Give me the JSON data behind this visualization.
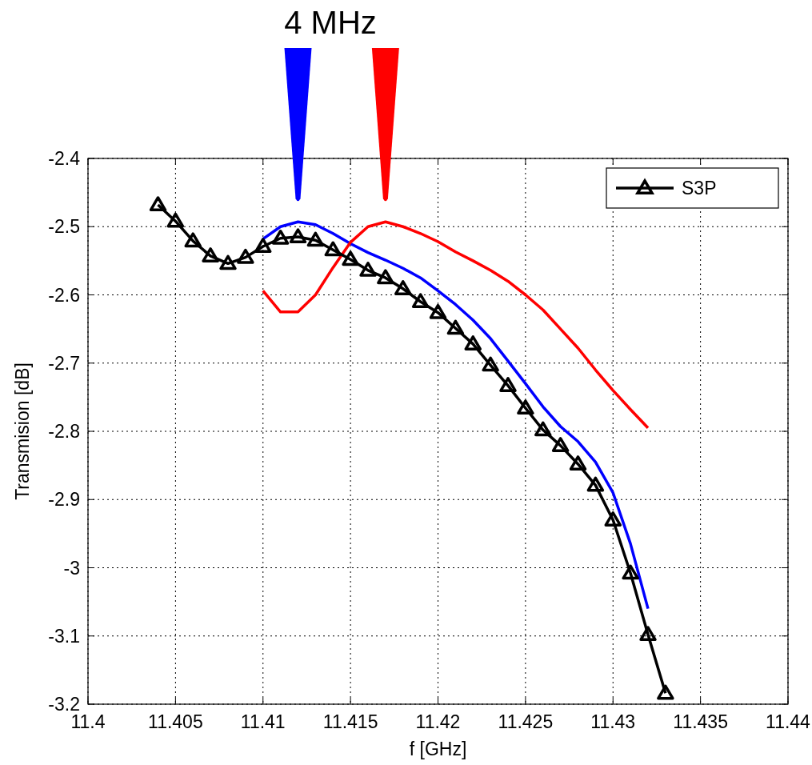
{
  "chart_data": {
    "type": "line",
    "xlabel": "f [GHz]",
    "ylabel": "Transmision [dB]",
    "annotations": [
      "4 MHz"
    ],
    "xlim": [
      11.4,
      11.44
    ],
    "xticks": [
      11.4,
      11.405,
      11.41,
      11.415,
      11.42,
      11.425,
      11.43,
      11.435,
      11.44
    ],
    "ylim": [
      -3.2,
      -2.4
    ],
    "yticks": [
      -3.2,
      -3.1,
      -3,
      -2.9,
      -2.8,
      -2.7,
      -2.6,
      -2.5,
      -2.4
    ],
    "grid": true,
    "legend": "top right",
    "line_style": "solid",
    "series": [
      {
        "color": "#0000ff",
        "marker": "none",
        "x": [
          11.41,
          11.411,
          11.412,
          11.413,
          11.414,
          11.415,
          11.416,
          11.417,
          11.418,
          11.419,
          11.42,
          11.421,
          11.422,
          11.423,
          11.424,
          11.425,
          11.426,
          11.427,
          11.428,
          11.429,
          11.43,
          11.431,
          11.432
        ],
        "values": [
          -2.518,
          -2.5,
          -2.493,
          -2.497,
          -2.51,
          -2.525,
          -2.538,
          -2.549,
          -2.561,
          -2.575,
          -2.594,
          -2.614,
          -2.637,
          -2.664,
          -2.697,
          -2.73,
          -2.764,
          -2.793,
          -2.815,
          -2.845,
          -2.89,
          -2.965,
          -3.06
        ]
      },
      {
        "color": "#ff0000",
        "marker": "none",
        "x": [
          11.41,
          11.411,
          11.412,
          11.413,
          11.414,
          11.415,
          11.416,
          11.417,
          11.418,
          11.419,
          11.42,
          11.421,
          11.422,
          11.423,
          11.424,
          11.425,
          11.426,
          11.427,
          11.428,
          11.429,
          11.43,
          11.431,
          11.432
        ],
        "values": [
          -2.594,
          -2.625,
          -2.625,
          -2.6,
          -2.56,
          -2.523,
          -2.5,
          -2.493,
          -2.5,
          -2.51,
          -2.522,
          -2.537,
          -2.55,
          -2.564,
          -2.58,
          -2.6,
          -2.622,
          -2.65,
          -2.678,
          -2.71,
          -2.74,
          -2.768,
          -2.795
        ]
      },
      {
        "name": "S3P",
        "color": "#000000",
        "marker": "triangle",
        "x": [
          11.404,
          11.405,
          11.406,
          11.407,
          11.408,
          11.409,
          11.41,
          11.411,
          11.412,
          11.413,
          11.414,
          11.415,
          11.416,
          11.417,
          11.418,
          11.419,
          11.42,
          11.421,
          11.422,
          11.423,
          11.424,
          11.425,
          11.426,
          11.427,
          11.428,
          11.429,
          11.43,
          11.431,
          11.432,
          11.433
        ],
        "values": [
          -2.468,
          -2.492,
          -2.521,
          -2.543,
          -2.554,
          -2.545,
          -2.529,
          -2.517,
          -2.515,
          -2.52,
          -2.534,
          -2.548,
          -2.564,
          -2.575,
          -2.591,
          -2.61,
          -2.626,
          -2.649,
          -2.672,
          -2.703,
          -2.733,
          -2.766,
          -2.798,
          -2.821,
          -2.848,
          -2.879,
          -2.93,
          -3.008,
          -3.098,
          -3.184
        ]
      }
    ]
  }
}
